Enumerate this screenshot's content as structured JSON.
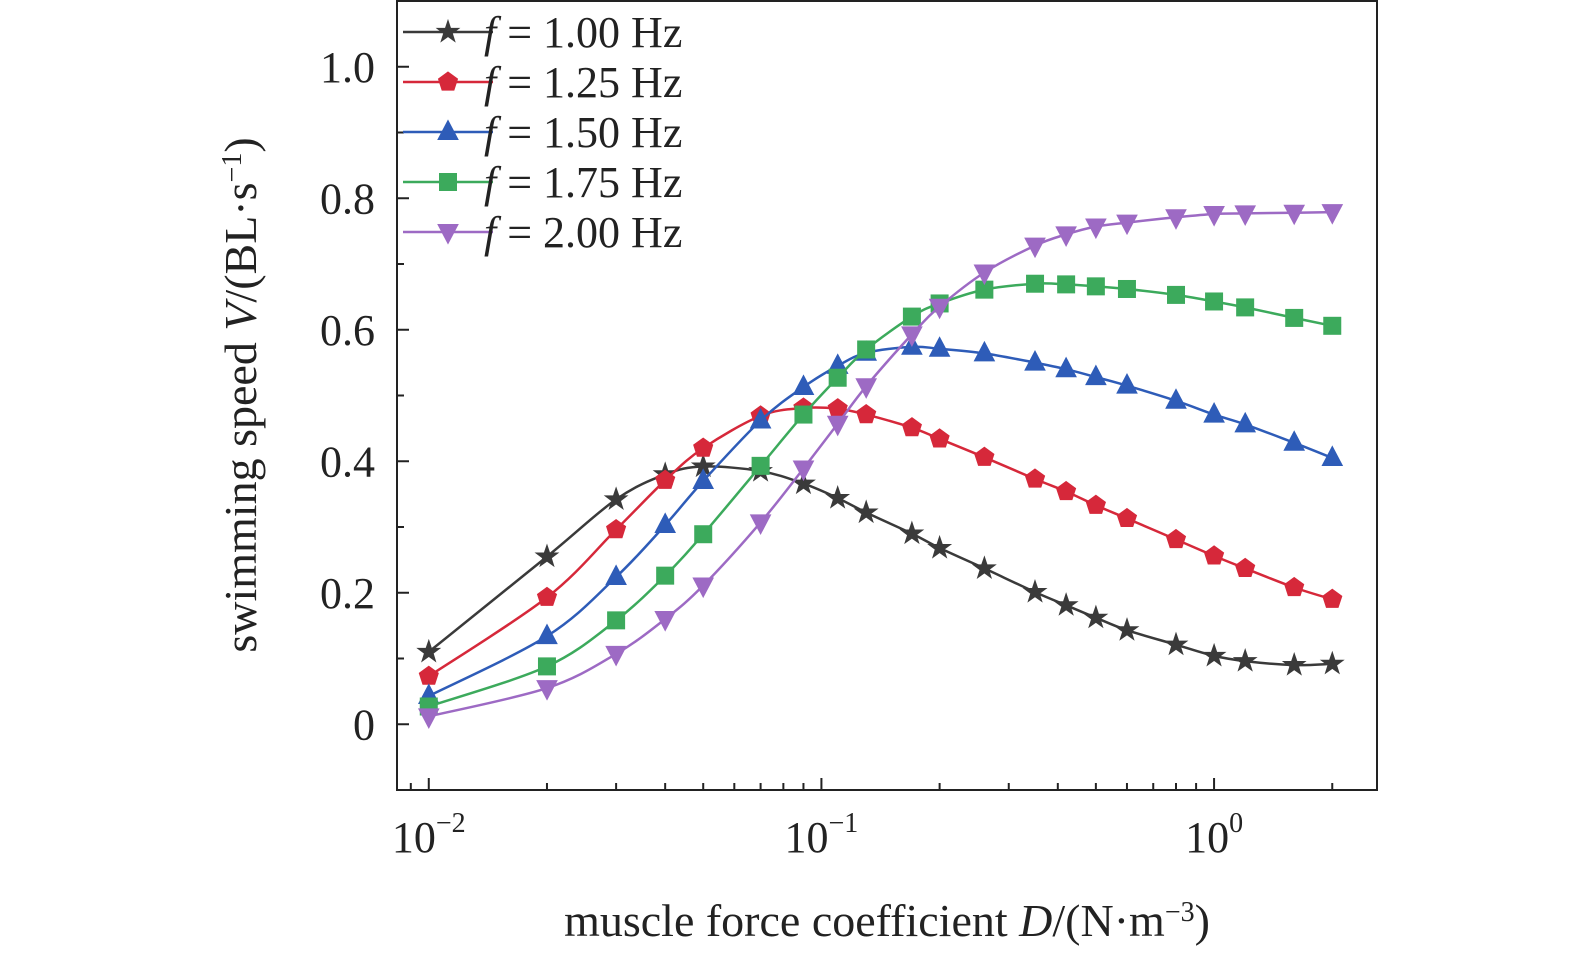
{
  "chart_data": {
    "type": "line",
    "title": "",
    "xlabel": "muscle force coefficient D/(N·m⁻³)",
    "xlabel_parts": {
      "prefix": "muscle force coefficient ",
      "var": "D",
      "unit_open": "/(N·m",
      "unit_exp": "−3",
      "unit_close": ")"
    },
    "ylabel": "swimming speed V/(BL·s⁻¹)",
    "ylabel_parts": {
      "prefix": "swimming speed ",
      "var": "V",
      "unit_open": "/(BL·s",
      "unit_exp": "−1",
      "unit_close": ")"
    },
    "x_scale": "log",
    "xlim": [
      0.0083,
      2.6
    ],
    "ylim": [
      -0.1,
      1.1
    ],
    "x_ticks": [
      {
        "value": 0.01,
        "base": "10",
        "exp": "−2"
      },
      {
        "value": 0.1,
        "base": "10",
        "exp": "−1"
      },
      {
        "value": 1,
        "base": "10",
        "exp": "0"
      }
    ],
    "y_ticks": [
      {
        "value": 0,
        "label": "0"
      },
      {
        "value": 0.2,
        "label": "0.2"
      },
      {
        "value": 0.4,
        "label": "0.4"
      },
      {
        "value": 0.6,
        "label": "0.6"
      },
      {
        "value": 0.8,
        "label": "0.8"
      },
      {
        "value": 1.0,
        "label": "1.0"
      }
    ],
    "grid": false,
    "legend_position": "top-left",
    "x": [
      0.01,
      0.02,
      0.03,
      0.04,
      0.05,
      0.07,
      0.09,
      0.11,
      0.13,
      0.17,
      0.2,
      0.26,
      0.35,
      0.42,
      0.5,
      0.6,
      0.8,
      1.0,
      1.2,
      1.6,
      2.0
    ],
    "series": [
      {
        "name_var": "f",
        "name_rest": " = 1.00 Hz",
        "color": "#3a3a3a",
        "marker": "star",
        "values": [
          0.11,
          0.255,
          0.342,
          0.38,
          0.392,
          0.385,
          0.366,
          0.344,
          0.322,
          0.29,
          0.268,
          0.237,
          0.201,
          0.181,
          0.162,
          0.143,
          0.121,
          0.104,
          0.096,
          0.09,
          0.092
        ]
      },
      {
        "name_var": "f",
        "name_rest": " = 1.25 Hz",
        "color": "#d6283a",
        "marker": "pentagon",
        "values": [
          0.073,
          0.193,
          0.296,
          0.371,
          0.42,
          0.469,
          0.481,
          0.48,
          0.471,
          0.451,
          0.434,
          0.406,
          0.373,
          0.354,
          0.333,
          0.313,
          0.281,
          0.256,
          0.237,
          0.208,
          0.19
        ]
      },
      {
        "name_var": "f",
        "name_rest": " = 1.50 Hz",
        "color": "#2e5cb8",
        "marker": "triangle-up",
        "values": [
          0.043,
          0.134,
          0.224,
          0.303,
          0.37,
          0.462,
          0.513,
          0.545,
          0.565,
          0.574,
          0.571,
          0.564,
          0.55,
          0.54,
          0.528,
          0.515,
          0.492,
          0.471,
          0.456,
          0.428,
          0.405
        ]
      },
      {
        "name_var": "f",
        "name_rest": " = 1.75 Hz",
        "color": "#3caa5c",
        "marker": "square",
        "values": [
          0.027,
          0.088,
          0.158,
          0.226,
          0.289,
          0.393,
          0.471,
          0.527,
          0.57,
          0.62,
          0.64,
          0.661,
          0.67,
          0.669,
          0.666,
          0.662,
          0.653,
          0.643,
          0.634,
          0.618,
          0.606
        ]
      },
      {
        "name_var": "f",
        "name_rest": " = 2.00 Hz",
        "color": "#9d6ac4",
        "marker": "triangle-down",
        "values": [
          0.012,
          0.055,
          0.107,
          0.16,
          0.211,
          0.307,
          0.389,
          0.457,
          0.514,
          0.593,
          0.635,
          0.687,
          0.728,
          0.745,
          0.757,
          0.763,
          0.771,
          0.776,
          0.777,
          0.778,
          0.779
        ]
      }
    ]
  }
}
